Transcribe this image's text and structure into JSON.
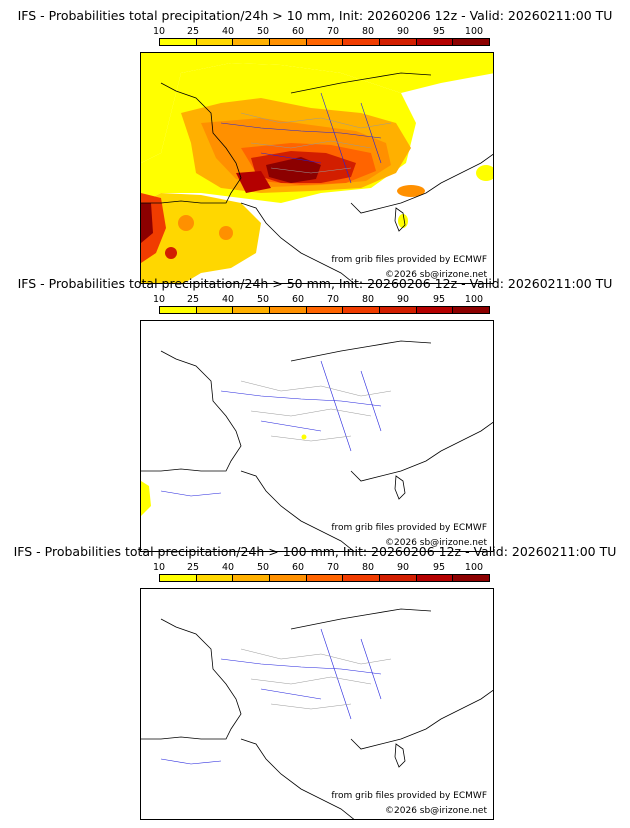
{
  "panels": [
    {
      "title": "IFS - Probabilities total precipitation/24h > 10 mm, Init: 20260206 12z - Valid: 20260211:00 TU",
      "credit_source": "from grib files provided by ECMWF",
      "credit_copyright": "©2026 sb@irizone.net"
    },
    {
      "title": "IFS - Probabilities total precipitation/24h > 50 mm, Init: 20260206 12z - Valid: 20260211:00 TU",
      "credit_source": "from grib files provided by ECMWF",
      "credit_copyright": "©2026 sb@irizone.net"
    },
    {
      "title": "IFS - Probabilities total precipitation/24h > 100 mm, Init: 20260206 12z - Valid: 20260211:00 TU",
      "credit_source": "from grib files provided by ECMWF",
      "credit_copyright": "©2026 sb@irizone.net"
    }
  ],
  "legend": {
    "labels": [
      "10",
      "25",
      "40",
      "50",
      "60",
      "70",
      "80",
      "90",
      "95",
      "100"
    ],
    "colors": [
      "#ffff00",
      "#ffd700",
      "#ffb000",
      "#ff9000",
      "#ff6400",
      "#f03c00",
      "#d21e00",
      "#b40000",
      "#8c0000",
      "#5a0000"
    ]
  },
  "colors": {
    "coast": "#000000",
    "river": "#2222dd",
    "border": "#999999"
  }
}
